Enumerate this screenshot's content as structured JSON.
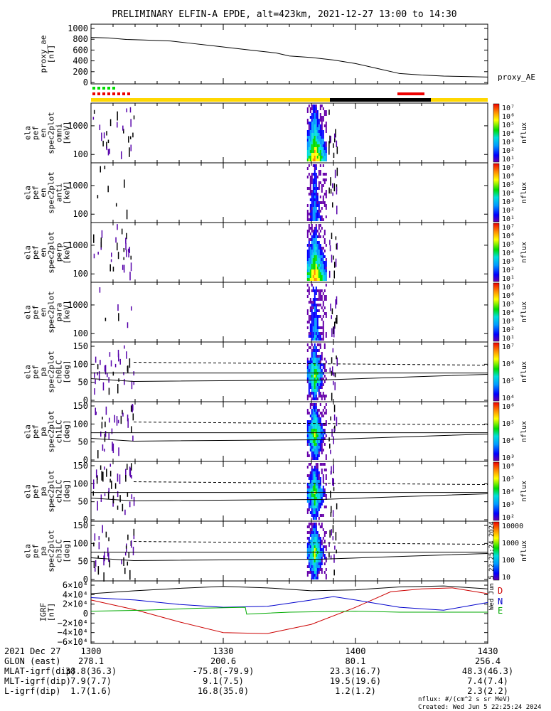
{
  "title": "PRELIMINARY ELFIN-A EPDE, alt=423km, 2021-12-27 13:00 to 14:30",
  "chart_data": [
    {
      "type": "line",
      "panel": "proxy_ae",
      "ylabel": [
        "proxy_ae",
        "[nT]"
      ],
      "yticks": [
        "1000",
        "800",
        "600",
        "400",
        "200",
        "0"
      ],
      "ylim": [
        0,
        1050
      ],
      "series": [
        {
          "name": "proxy_AE",
          "x": [
            0,
            4,
            8,
            12,
            18,
            22,
            28,
            32,
            38,
            42,
            45,
            50,
            55,
            60,
            65,
            70,
            75,
            80,
            85,
            90
          ],
          "y": [
            870,
            860,
            830,
            820,
            800,
            760,
            700,
            660,
            600,
            560,
            500,
            470,
            420,
            350,
            250,
            150,
            120,
            100,
            90,
            80
          ]
        }
      ],
      "color": "#000000"
    },
    {
      "type": "heatmap",
      "panel": "en_omni",
      "ylabel": [
        "ela",
        "pef",
        "en",
        "spec2plot",
        "omni",
        "[keV]"
      ],
      "yticks": [
        "1000",
        "100"
      ],
      "colorbar": {
        "label": "nflux",
        "ticks": [
          "10^7",
          "10^6",
          "10^5",
          "10^4",
          "10^3",
          "10^2",
          "10^1"
        ]
      }
    },
    {
      "type": "heatmap",
      "panel": "en_anti",
      "ylabel": [
        "ela",
        "pef",
        "en",
        "spec2plot",
        "anti",
        "[keV]"
      ],
      "yticks": [
        "1000",
        "100"
      ],
      "colorbar": {
        "label": "nflux",
        "ticks": [
          "10^7",
          "10^6",
          "10^5",
          "10^4",
          "10^3",
          "10^2",
          "10^1"
        ]
      }
    },
    {
      "type": "heatmap",
      "panel": "en_perp",
      "ylabel": [
        "ela",
        "pef",
        "en",
        "spec2plot",
        "perp",
        "[keV]"
      ],
      "yticks": [
        "1000",
        "100"
      ],
      "colorbar": {
        "label": "nflux",
        "ticks": [
          "10^7",
          "10^6",
          "10^5",
          "10^4",
          "10^3",
          "10^2",
          "10^1"
        ]
      }
    },
    {
      "type": "heatmap",
      "panel": "en_para",
      "ylabel": [
        "ela",
        "pef",
        "en",
        "spec2plot",
        "para",
        "[keV]"
      ],
      "yticks": [
        "1000",
        "100"
      ],
      "colorbar": {
        "label": "nflux",
        "ticks": [
          "10^7",
          "10^6",
          "10^5",
          "10^4",
          "10^3",
          "10^2",
          "10^1"
        ]
      }
    },
    {
      "type": "heatmap",
      "panel": "pa_ch0LC",
      "ylabel": [
        "ela",
        "pef",
        "pa",
        "spec2plot",
        "ch0LC",
        "[deg]"
      ],
      "yticks": [
        "150",
        "100",
        "50",
        "0"
      ],
      "colorbar": {
        "label": "nflux",
        "ticks": [
          "10^7",
          "10^6",
          "10^5",
          "10^4"
        ]
      }
    },
    {
      "type": "heatmap",
      "panel": "pa_ch1LC",
      "ylabel": [
        "ela",
        "pef",
        "pa",
        "spec2plot",
        "ch1LC",
        "[deg]"
      ],
      "yticks": [
        "150",
        "100",
        "50",
        "0"
      ],
      "colorbar": {
        "label": "nflux",
        "ticks": [
          "10^6",
          "10^5",
          "10^4",
          "10^3"
        ]
      }
    },
    {
      "type": "heatmap",
      "panel": "pa_ch2LC",
      "ylabel": [
        "ela",
        "pef",
        "pa",
        "spec2plot",
        "ch2LC",
        "[deg]"
      ],
      "yticks": [
        "150",
        "100",
        "50",
        "0"
      ],
      "colorbar": {
        "label": "nflux",
        "ticks": [
          "10^6",
          "10^5",
          "10^4",
          "10^3",
          "10^2"
        ]
      }
    },
    {
      "type": "heatmap",
      "panel": "pa_ch3LC",
      "ylabel": [
        "ela",
        "pef",
        "pa",
        "spec2plot",
        "ch3LC",
        "[deg]"
      ],
      "yticks": [
        "150",
        "100",
        "50",
        "0"
      ],
      "colorbar": {
        "label": "nflux",
        "ticks": [
          "10000",
          "1000",
          "100",
          "10"
        ]
      }
    },
    {
      "type": "line",
      "panel": "igrf",
      "ylabel": [
        "IGRF",
        "[nT]"
      ],
      "yticks": [
        "6×10⁴",
        "4×10⁴",
        "2×10⁴",
        "0",
        "−2×10⁴",
        "−4×10⁴",
        "−6×10⁴"
      ],
      "ylim": [
        -60000,
        60000
      ],
      "series": [
        {
          "name": "D",
          "color": "#cc0000",
          "x": [
            0,
            10,
            20,
            30,
            40,
            50,
            60,
            68,
            75,
            82,
            90
          ],
          "y": [
            25000,
            5000,
            -20000,
            -42000,
            -44000,
            -25000,
            10000,
            42000,
            48000,
            50000,
            38000
          ]
        },
        {
          "name": "N",
          "color": "#0000cc",
          "x": [
            0,
            10,
            20,
            30,
            40,
            50,
            55,
            60,
            70,
            80,
            90
          ],
          "y": [
            30000,
            25000,
            16000,
            10000,
            12000,
            25000,
            32000,
            25000,
            10000,
            4000,
            20000
          ]
        },
        {
          "name": "E",
          "color": "#00aa00",
          "x": [
            0,
            12,
            24,
            35,
            35.3,
            45,
            60,
            70,
            80,
            90
          ],
          "y": [
            2000,
            4000,
            8000,
            10000,
            -4000,
            0,
            2000,
            0,
            0,
            0
          ]
        },
        {
          "name": "",
          "color": "#000000",
          "x": [
            0,
            10,
            20,
            30,
            40,
            50,
            60,
            70,
            80,
            90
          ],
          "y": [
            38000,
            44000,
            49000,
            53000,
            50000,
            44000,
            46000,
            52000,
            54000,
            48000
          ]
        }
      ]
    }
  ],
  "bars": {
    "green_label": "",
    "red_label": ""
  },
  "x_axis": {
    "ticks": [
      {
        "x": 0,
        "label": "1300"
      },
      {
        "x": 30,
        "label": "1330"
      },
      {
        "x": 60,
        "label": "1400"
      },
      {
        "x": 90,
        "label": "1430"
      }
    ]
  },
  "ephemeris": [
    {
      "label": "2021 Dec 27",
      "values": [
        "1300",
        "1330",
        "1400",
        "1430"
      ]
    },
    {
      "label": "GLON (east)",
      "values": [
        "278.1",
        "200.6",
        "80.1",
        "256.4"
      ]
    },
    {
      "label": "MLAT-igrf(dip)",
      "values": [
        "38.8(36.3)",
        "-75.8(-79.9)",
        "23.3(16.7)",
        "48.3(46.3)"
      ]
    },
    {
      "label": "MLT-igrf(dip)",
      "values": [
        "7.9(7.7)",
        "9.1(7.5)",
        "19.5(19.6)",
        "7.4(7.4)"
      ]
    },
    {
      "label": "L-igrf(dip)",
      "values": [
        "1.7(1.6)",
        "16.8(35.0)",
        "1.2(1.2)",
        "2.3(2.2)"
      ]
    }
  ],
  "footer": {
    "units": "nflux: #/(cm^2 s sr MeV)",
    "created": "Created: Wed Jun  5 22:25:24 2024",
    "side_stamp": "Wed Jun  5 22:25:24 2024"
  },
  "legend": {
    "proxy_ae": "proxy_AE",
    "d": "D",
    "n": "N",
    "e": "E"
  }
}
